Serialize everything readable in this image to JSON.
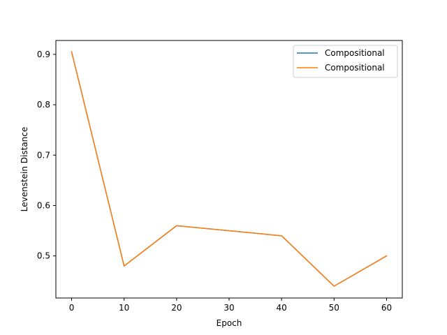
{
  "chart_data": {
    "type": "line",
    "title": "",
    "xlabel": "Epoch",
    "ylabel": "Levenstein Distance",
    "xlim": [
      -3,
      63
    ],
    "ylim": [
      0.4165,
      0.9275
    ],
    "xticks": [
      0,
      10,
      20,
      30,
      40,
      50,
      60
    ],
    "yticks": [
      0.5,
      0.6,
      0.7,
      0.8,
      0.9
    ],
    "xtick_labels": [
      "0",
      "10",
      "20",
      "30",
      "40",
      "50",
      "60"
    ],
    "ytick_labels": [
      "0.5",
      "0.6",
      "0.7",
      "0.8",
      "0.9"
    ],
    "grid": false,
    "legend_position": "top-right",
    "x": [
      0,
      10,
      20,
      40,
      50,
      60
    ],
    "series": [
      {
        "name": "Compositional",
        "color": "#1f77b4",
        "values": [
          0.905,
          0.48,
          0.56,
          0.54,
          0.44,
          0.5
        ]
      },
      {
        "name": "Compositional",
        "color": "#ff7f0e",
        "values": [
          0.905,
          0.48,
          0.56,
          0.54,
          0.44,
          0.5
        ]
      }
    ]
  }
}
